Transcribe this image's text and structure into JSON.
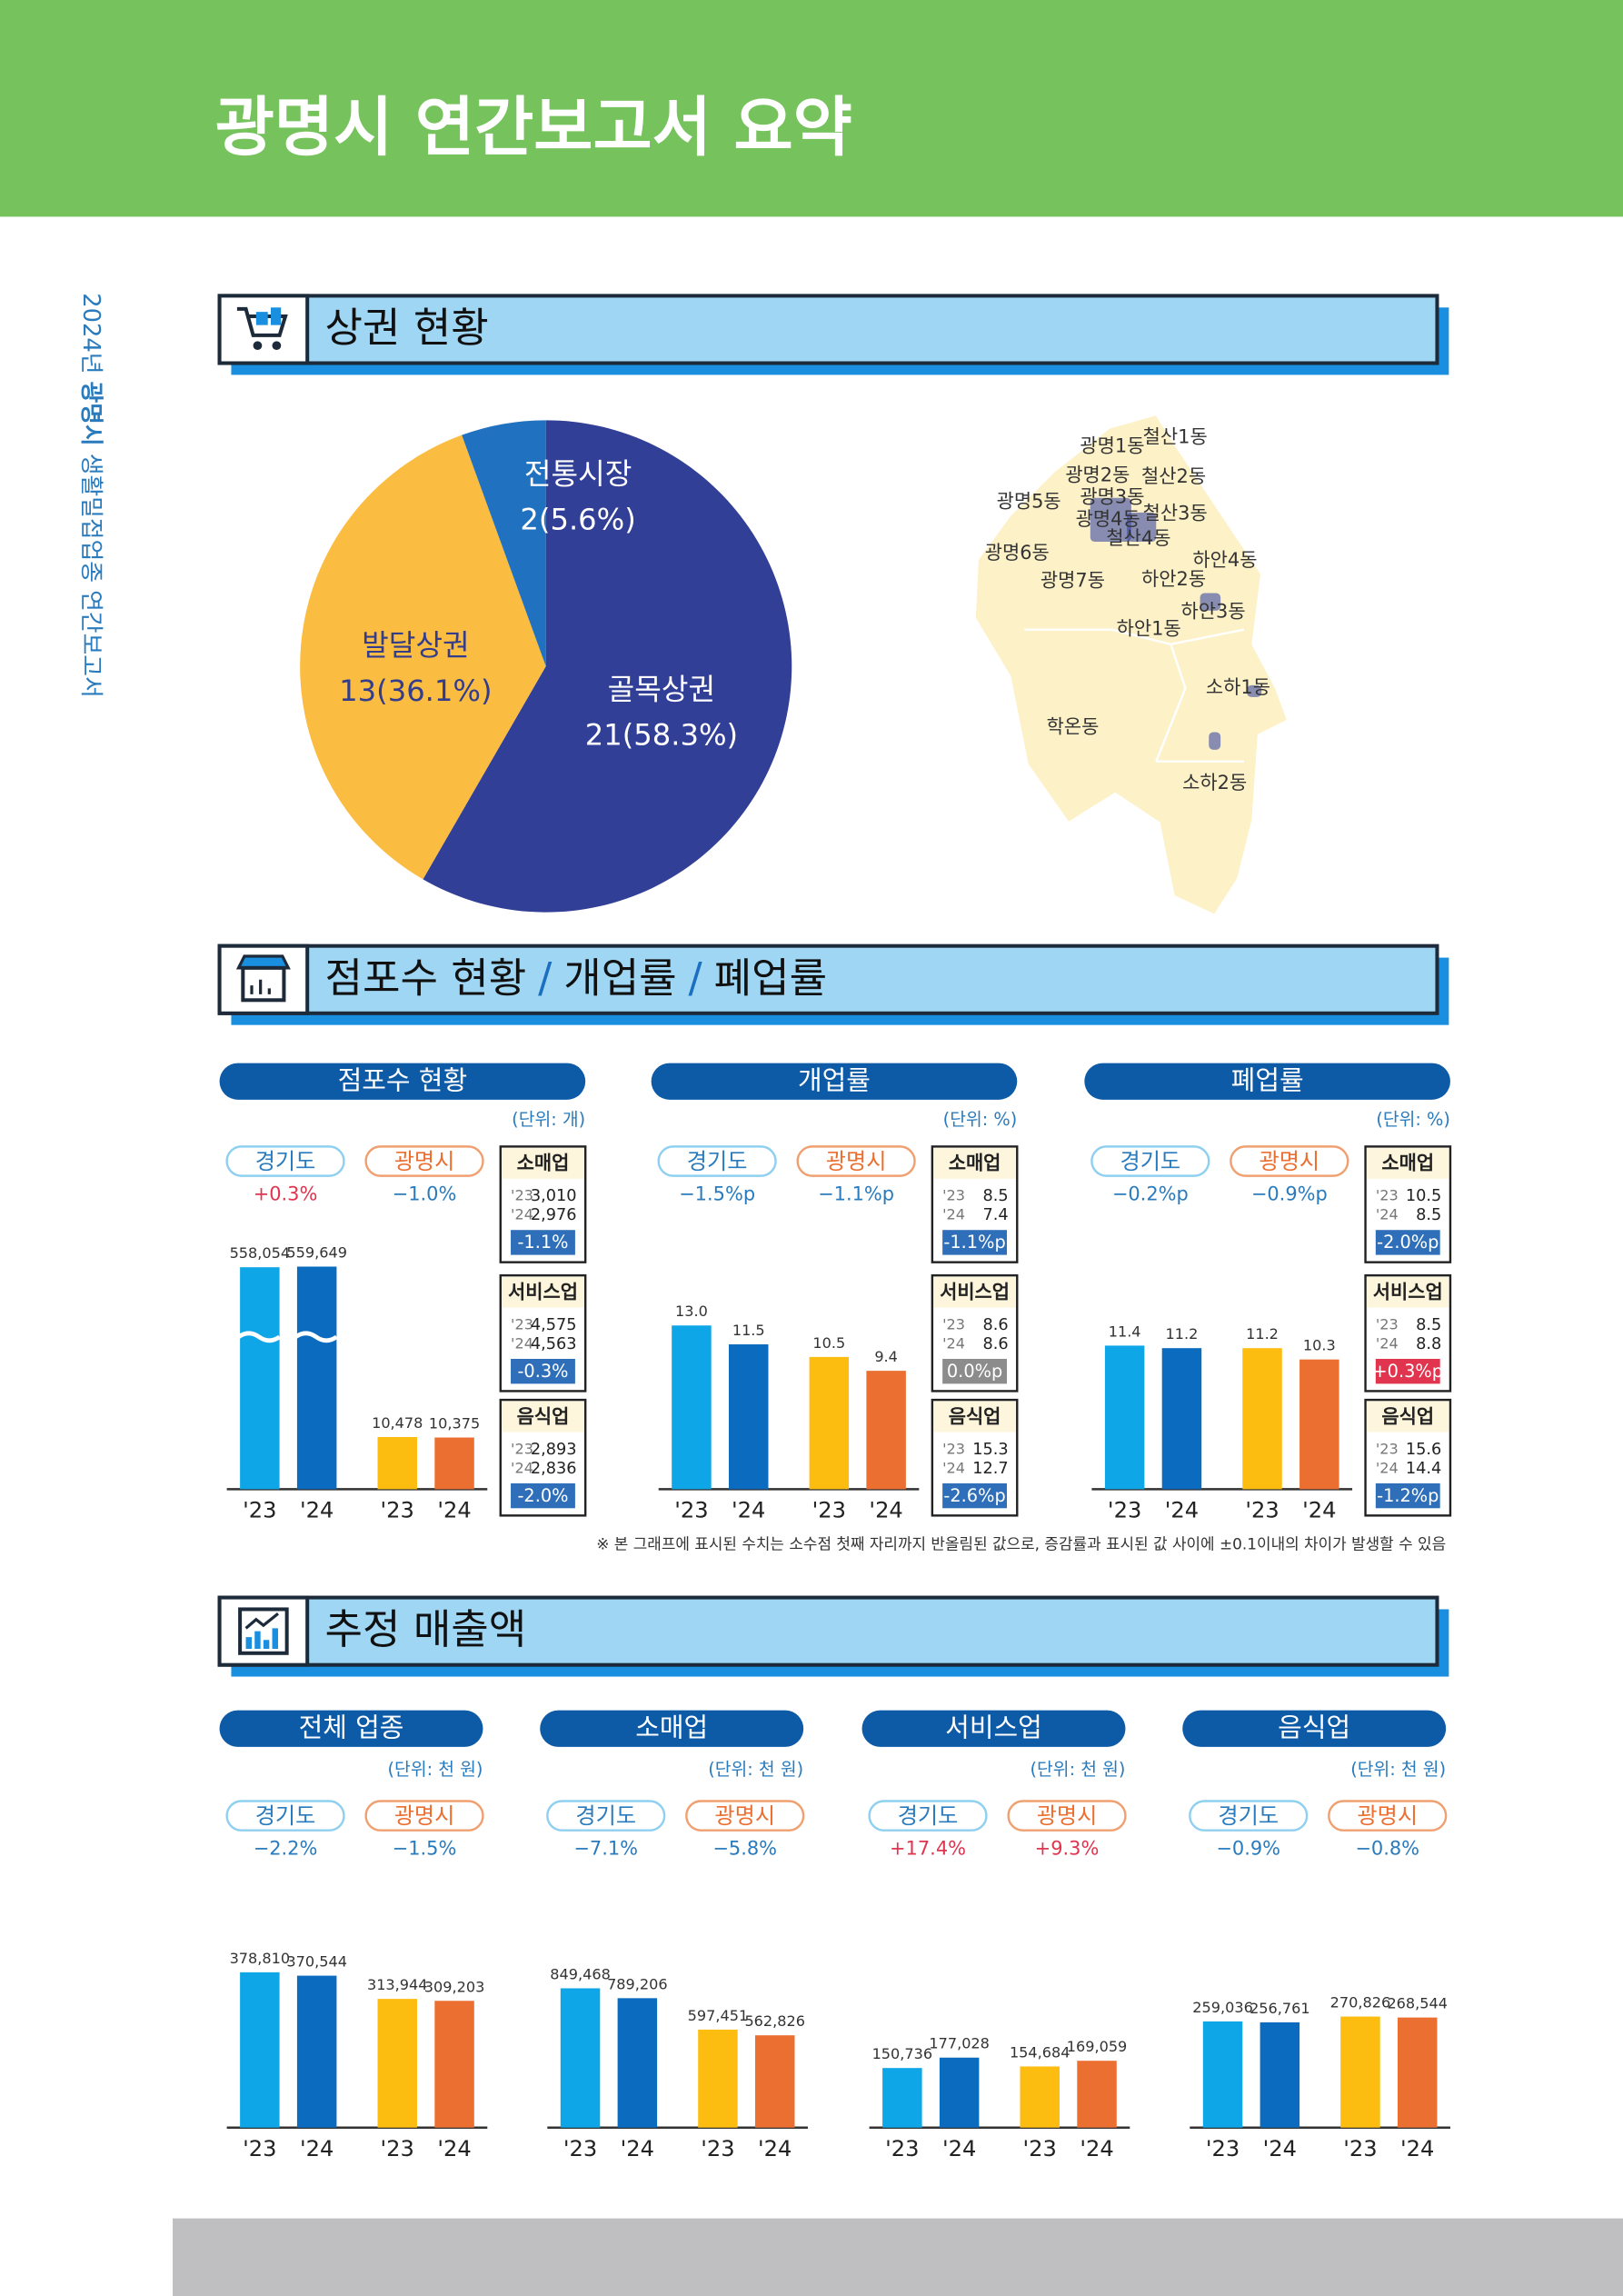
{
  "header": {
    "title": "광명시 연간보고서 요약"
  },
  "side": {
    "year": "2024년",
    "city": "광명시",
    "text": "생활밀접업종 연간보고서"
  },
  "market": {
    "title": "상권 현황",
    "pie": {
      "type": "pie",
      "labels": [
        "골목상권",
        "발달상권",
        "전통시장"
      ],
      "values": [
        21,
        13,
        2
      ],
      "value_labels": [
        "21(58.3%)",
        "13(36.1%)",
        "2(5.6%)"
      ],
      "colors": [
        "#323f96",
        "#fbbd41",
        "#2071bf"
      ]
    },
    "map": {
      "labels": [
        "광명1동",
        "철산1동",
        "광명2동",
        "철산2동",
        "광명5동",
        "광명3동",
        "철산3동",
        "광명4동",
        "철산4동",
        "광명6동",
        "하안4동",
        "광명7동",
        "하안2동",
        "하안3동",
        "하안1동",
        "소하1동",
        "학온동",
        "소하2동"
      ]
    }
  },
  "stores": {
    "title_parts": [
      "점포수 현황",
      "/",
      "개업률",
      "/",
      "폐업률"
    ],
    "panels": [
      {
        "type": "bar",
        "title": "점포수 현황",
        "unit": "(단위: 개)",
        "legend": [
          "경기도",
          "광명시"
        ],
        "changes": [
          "+0.3%",
          "−1.0%"
        ],
        "change_colors": [
          "#e0344f",
          "#2a7bbd"
        ],
        "categories": [
          "'23",
          "'24",
          "'23",
          "'24"
        ],
        "values": [
          558054,
          559649,
          10478,
          10375
        ],
        "value_labels": [
          "558,054",
          "559,649",
          "10,478",
          "10,375"
        ],
        "colors": [
          "#0fa6e8",
          "#0a6bbf",
          "#fcbd10",
          "#ea6f31"
        ],
        "axis_break": true,
        "boxes": [
          {
            "name": "소매업",
            "rows": [
              [
                "'23",
                "3,010"
              ],
              [
                "'24",
                "2,976"
              ]
            ],
            "change": "-1.1%",
            "color": "#2f6fba"
          },
          {
            "name": "서비스업",
            "rows": [
              [
                "'23",
                "4,575"
              ],
              [
                "'24",
                "4,563"
              ]
            ],
            "change": "-0.3%",
            "color": "#2f6fba"
          },
          {
            "name": "음식업",
            "rows": [
              [
                "'23",
                "2,893"
              ],
              [
                "'24",
                "2,836"
              ]
            ],
            "change": "-2.0%",
            "color": "#2f6fba"
          }
        ]
      },
      {
        "type": "bar",
        "title": "개업률",
        "unit": "(단위: %)",
        "legend": [
          "경기도",
          "광명시"
        ],
        "changes": [
          "−1.5%p",
          "−1.1%p"
        ],
        "change_colors": [
          "#2a7bbd",
          "#2a7bbd"
        ],
        "categories": [
          "'23",
          "'24",
          "'23",
          "'24"
        ],
        "values": [
          13,
          11.5,
          10.5,
          9.4
        ],
        "value_labels": [
          "13.0",
          "11.5",
          "10.5",
          "9.4"
        ],
        "colors": [
          "#0fa6e8",
          "#0a6bbf",
          "#fcbd10",
          "#ea6f31"
        ],
        "boxes": [
          {
            "name": "소매업",
            "rows": [
              [
                "'23",
                "8.5"
              ],
              [
                "'24",
                "7.4"
              ]
            ],
            "change": "-1.1%p",
            "color": "#2f6fba"
          },
          {
            "name": "서비스업",
            "rows": [
              [
                "'23",
                "8.6"
              ],
              [
                "'24",
                "8.6"
              ]
            ],
            "change": "0.0%p",
            "color": "#8c8c8c"
          },
          {
            "name": "음식업",
            "rows": [
              [
                "'23",
                "15.3"
              ],
              [
                "'24",
                "12.7"
              ]
            ],
            "change": "-2.6%p",
            "color": "#2f6fba"
          }
        ]
      },
      {
        "type": "bar",
        "title": "폐업률",
        "unit": "(단위: %)",
        "legend": [
          "경기도",
          "광명시"
        ],
        "changes": [
          "−0.2%p",
          "−0.9%p"
        ],
        "change_colors": [
          "#2a7bbd",
          "#2a7bbd"
        ],
        "categories": [
          "'23",
          "'24",
          "'23",
          "'24"
        ],
        "values": [
          11.4,
          11.2,
          11.2,
          10.3
        ],
        "value_labels": [
          "11.4",
          "11.2",
          "11.2",
          "10.3"
        ],
        "colors": [
          "#0fa6e8",
          "#0a6bbf",
          "#fcbd10",
          "#ea6f31"
        ],
        "boxes": [
          {
            "name": "소매업",
            "rows": [
              [
                "'23",
                "10.5"
              ],
              [
                "'24",
                "8.5"
              ]
            ],
            "change": "-2.0%p",
            "color": "#2f6fba"
          },
          {
            "name": "서비스업",
            "rows": [
              [
                "'23",
                "8.5"
              ],
              [
                "'24",
                "8.8"
              ]
            ],
            "change": "+0.3%p",
            "color": "#e0344f"
          },
          {
            "name": "음식업",
            "rows": [
              [
                "'23",
                "15.6"
              ],
              [
                "'24",
                "14.4"
              ]
            ],
            "change": "-1.2%p",
            "color": "#2f6fba"
          }
        ]
      }
    ],
    "note": "※ 본 그래프에 표시된 수치는 소수점 첫째 자리까지 반올림된 값으로, 증감률과 표시된 값 사이에 ±0.1이내의 차이가 발생할 수 있음"
  },
  "sales": {
    "title": "추정 매출액",
    "panels": [
      {
        "type": "bar",
        "title": "전체 업종",
        "unit": "(단위: 천 원)",
        "legend": [
          "경기도",
          "광명시"
        ],
        "changes": [
          "−2.2%",
          "−1.5%"
        ],
        "change_colors": [
          "#2a7bbd",
          "#2a7bbd"
        ],
        "categories": [
          "'23",
          "'24",
          "'23",
          "'24"
        ],
        "values": [
          378810,
          370544,
          313944,
          309203
        ],
        "value_labels": [
          "378,810",
          "370,544",
          "313,944",
          "309,203"
        ],
        "colors": [
          "#0fa6e8",
          "#0a6bbf",
          "#fcbd10",
          "#ea6f31"
        ]
      },
      {
        "type": "bar",
        "title": "소매업",
        "unit": "(단위: 천 원)",
        "legend": [
          "경기도",
          "광명시"
        ],
        "changes": [
          "−7.1%",
          "−5.8%"
        ],
        "change_colors": [
          "#2a7bbd",
          "#2a7bbd"
        ],
        "categories": [
          "'23",
          "'24",
          "'23",
          "'24"
        ],
        "values": [
          849468,
          789206,
          597451,
          562826
        ],
        "value_labels": [
          "849,468",
          "789,206",
          "597,451",
          "562,826"
        ],
        "colors": [
          "#0fa6e8",
          "#0a6bbf",
          "#fcbd10",
          "#ea6f31"
        ]
      },
      {
        "type": "bar",
        "title": "서비스업",
        "unit": "(단위: 천 원)",
        "legend": [
          "경기도",
          "광명시"
        ],
        "changes": [
          "+17.4%",
          "+9.3%"
        ],
        "change_colors": [
          "#e0344f",
          "#e0344f"
        ],
        "categories": [
          "'23",
          "'24",
          "'23",
          "'24"
        ],
        "values": [
          150736,
          177028,
          154684,
          169059
        ],
        "value_labels": [
          "150,736",
          "177,028",
          "154,684",
          "169,059"
        ],
        "colors": [
          "#0fa6e8",
          "#0a6bbf",
          "#fcbd10",
          "#ea6f31"
        ]
      },
      {
        "type": "bar",
        "title": "음식업",
        "unit": "(단위: 천 원)",
        "legend": [
          "경기도",
          "광명시"
        ],
        "changes": [
          "−0.9%",
          "−0.8%"
        ],
        "change_colors": [
          "#2a7bbd",
          "#2a7bbd"
        ],
        "categories": [
          "'23",
          "'24",
          "'23",
          "'24"
        ],
        "values": [
          259036,
          256761,
          270826,
          268544
        ],
        "value_labels": [
          "259,036",
          "256,761",
          "270,826",
          "268,544"
        ],
        "colors": [
          "#0fa6e8",
          "#0a6bbf",
          "#fcbd10",
          "#ea6f31"
        ]
      }
    ]
  }
}
